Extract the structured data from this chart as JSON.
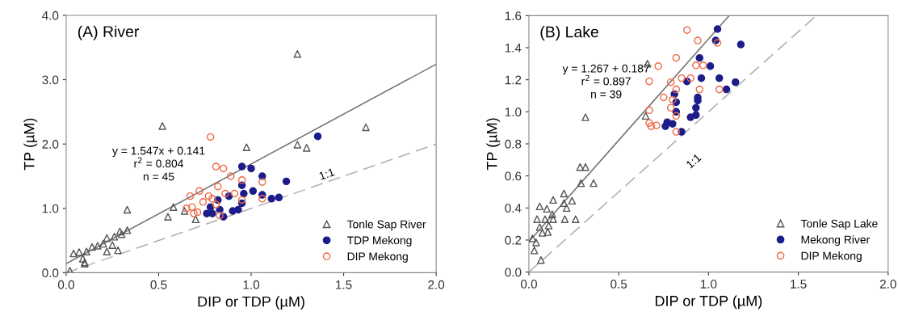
{
  "chart_data": [
    {
      "type": "scatter",
      "title": "(A) River",
      "xlabel": "DIP or TDP (µM)",
      "ylabel": "TP (µM)",
      "xlim": [
        0,
        2
      ],
      "xticks": [
        {
          "value": 0,
          "label": "0.0"
        },
        {
          "value": 0.5,
          "label": "0.5"
        },
        {
          "value": 1,
          "label": "1.0"
        },
        {
          "value": 1.5,
          "label": "1.5"
        },
        {
          "value": 2,
          "label": "2.0"
        }
      ],
      "ylim": [
        0,
        4
      ],
      "yticks": [
        {
          "value": 0,
          "label": "0.0"
        },
        {
          "value": 1,
          "label": "1.0"
        },
        {
          "value": 2,
          "label": "2.0"
        },
        {
          "value": 3,
          "label": "3.0"
        },
        {
          "value": 4,
          "label": "4.0"
        }
      ],
      "grid": false,
      "legend": "bottom right",
      "annotations": [
        "y = 1.547x + 0.141\nr$^{2}$ = 0.804\nn = 45",
        "1:1"
      ],
      "series": [
        {
          "name": "Tonle Sap River",
          "marker": "triangle",
          "color": "#555555",
          "x": [
            0.52,
            0.975,
            0.33,
            0.58,
            0.55,
            0.64,
            0.7,
            0.29,
            0.3,
            0.33,
            0.26,
            0.22,
            0.2,
            0.17,
            0.14,
            0.28,
            0.25,
            0.22,
            0.11,
            0.07,
            0.04,
            0.09,
            0.1,
            1.62,
            1.25,
            1.3,
            1.25,
            0.02,
            0.1
          ],
          "values": [
            2.28,
            1.95,
            0.98,
            1.02,
            0.87,
            0.96,
            0.83,
            0.64,
            0.6,
            0.66,
            0.56,
            0.54,
            0.45,
            0.42,
            0.4,
            0.35,
            0.43,
            0.33,
            0.33,
            0.32,
            0.3,
            0.22,
            0.14,
            2.26,
            1.99,
            1.94,
            3.4,
            0.03,
            0.16
          ]
        },
        {
          "name": "TDP Mekong",
          "marker": "circle",
          "color": "#1c1c8a",
          "x": [
            0.95,
            1.0,
            1.06,
            1.19,
            1.01,
            0.95,
            0.96,
            1.06,
            1.11,
            1.15,
            0.88,
            0.82,
            0.78,
            0.76,
            0.79,
            0.85,
            0.9,
            0.93,
            0.95,
            0.83,
            1.36
          ],
          "values": [
            1.65,
            1.62,
            1.5,
            1.42,
            1.27,
            1.36,
            1.23,
            1.21,
            1.15,
            1.17,
            1.19,
            1.13,
            1.02,
            0.92,
            0.92,
            0.87,
            0.96,
            0.98,
            1.08,
            0.98,
            2.12
          ]
        },
        {
          "name": "DIP Mekong",
          "marker": "circle",
          "color": "#ee6a45",
          "x": [
            0.78,
            0.81,
            0.85,
            0.89,
            0.95,
            1.06,
            0.82,
            0.72,
            0.67,
            0.74,
            0.79,
            0.86,
            0.91,
            0.81,
            0.68,
            0.71,
            0.69,
            0.83,
            0.95,
            1.06,
            0.77,
            0.65
          ],
          "values": [
            2.11,
            1.65,
            1.62,
            1.5,
            1.44,
            1.41,
            1.34,
            1.27,
            1.19,
            1.1,
            1.15,
            1.23,
            1.23,
            1.06,
            1.02,
            0.94,
            0.92,
            0.89,
            1.13,
            1.15,
            1.19,
            1.0
          ]
        },
        {
          "type": "line",
          "line_style": "solid",
          "color": "#707070",
          "x": [
            0,
            2
          ],
          "values": [
            0.14,
            3.24
          ]
        },
        {
          "type": "line",
          "line_style": "dashed",
          "color": "#b0b0b0",
          "x": [
            0,
            2
          ],
          "values": [
            0,
            2
          ]
        }
      ]
    },
    {
      "type": "scatter",
      "title": "(B) Lake",
      "xlabel": "DIP or TDP (µM)",
      "ylabel": "TP (µM)",
      "xlim": [
        0,
        2
      ],
      "xticks": [
        {
          "value": 0,
          "label": "0.0"
        },
        {
          "value": 0.5,
          "label": "0.5"
        },
        {
          "value": 1,
          "label": "1.0"
        },
        {
          "value": 1.5,
          "label": "1.5"
        },
        {
          "value": 2,
          "label": "2.0"
        }
      ],
      "ylim": [
        0,
        1.6
      ],
      "yticks": [
        {
          "value": 0,
          "label": "0.0"
        },
        {
          "value": 0.2,
          "label": "0.2"
        },
        {
          "value": 0.4,
          "label": "0.4"
        },
        {
          "value": 0.6,
          "label": "0.6"
        },
        {
          "value": 0.8,
          "label": "0.8"
        },
        {
          "value": 1,
          "label": "1.0"
        },
        {
          "value": 1.2,
          "label": "1.2"
        },
        {
          "value": 1.4,
          "label": "1.4"
        },
        {
          "value": 1.6,
          "label": "1.6"
        }
      ],
      "grid": false,
      "legend": "bottom right",
      "annotations": [
        "y = 1.267 + 0.187\nr$^{2}$ = 0.897\nn = 39",
        "1:1"
      ],
      "series": [
        {
          "name": "Tonle Sap Lake",
          "marker": "triangle",
          "color": "#555555",
          "x": [
            0.315,
            0.285,
            0.29,
            0.36,
            0.315,
            0.66,
            0.65,
            0.195,
            0.135,
            0.24,
            0.195,
            0.21,
            0.06,
            0.1,
            0.13,
            0.045,
            0.09,
            0.135,
            0.2,
            0.26,
            0.11,
            0.06,
            0.075,
            0.105,
            0.02,
            0.04,
            0.03,
            0.067
          ],
          "values": [
            0.655,
            0.655,
            0.555,
            0.555,
            0.966,
            1.3,
            0.975,
            0.49,
            0.45,
            0.445,
            0.43,
            0.4,
            0.41,
            0.395,
            0.36,
            0.33,
            0.33,
            0.33,
            0.33,
            0.33,
            0.29,
            0.28,
            0.245,
            0.25,
            0.21,
            0.185,
            0.135,
            0.075
          ]
        },
        {
          "name": "Mekong River",
          "marker": "circle",
          "color": "#1c1c8a",
          "x": [
            1.05,
            1.04,
            0.95,
            1.01,
            0.96,
            1.06,
            0.88,
            0.81,
            0.82,
            0.82,
            0.94,
            0.94,
            0.93,
            0.9,
            0.93,
            0.76,
            0.8,
            0.77,
            0.85,
            1.18,
            1.15,
            1.1
          ],
          "values": [
            1.516,
            1.445,
            1.336,
            1.285,
            1.21,
            1.21,
            1.19,
            1.11,
            1.06,
            1.0,
            1.09,
            1.07,
            1.025,
            0.966,
            0.98,
            0.91,
            0.925,
            0.935,
            0.875,
            1.42,
            1.185,
            1.14
          ]
        },
        {
          "name": "DIP Mekong",
          "marker": "circle",
          "color": "#ee6a45",
          "x": [
            0.88,
            0.94,
            1.05,
            0.82,
            0.72,
            0.93,
            0.97,
            0.67,
            0.79,
            0.85,
            0.9,
            0.82,
            0.95,
            1.06,
            0.75,
            0.8,
            0.79,
            0.82,
            0.67,
            0.67,
            0.71,
            0.68,
            0.82
          ],
          "values": [
            1.51,
            1.445,
            1.43,
            1.336,
            1.285,
            1.29,
            1.29,
            1.19,
            1.185,
            1.21,
            1.21,
            1.14,
            1.14,
            1.14,
            1.09,
            1.075,
            1.025,
            0.975,
            1.01,
            0.93,
            0.915,
            0.91,
            0.875
          ]
        },
        {
          "type": "line",
          "line_style": "solid",
          "color": "#707070",
          "x": [
            0,
            1.115
          ],
          "values": [
            0.19,
            1.6
          ]
        },
        {
          "type": "line",
          "line_style": "dashed",
          "color": "#b0b0b0",
          "x": [
            0,
            1.6
          ],
          "values": [
            0,
            1.6
          ]
        }
      ]
    }
  ]
}
